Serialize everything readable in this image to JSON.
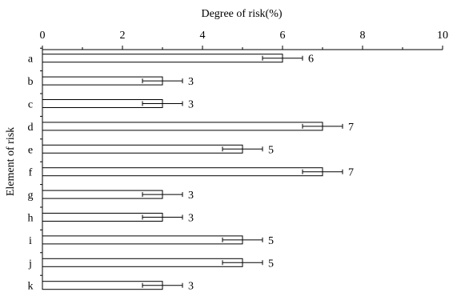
{
  "chart_data": {
    "type": "bar",
    "orientation": "horizontal",
    "xlabel": "Degree of risk(%)",
    "ylabel": "Element of risk",
    "xlim": [
      0,
      10
    ],
    "x_ticks": [
      0,
      2,
      4,
      6,
      8,
      10
    ],
    "x_axis_position": "top",
    "grid": false,
    "categories": [
      "a",
      "b",
      "c",
      "d",
      "e",
      "f",
      "g",
      "h",
      "i",
      "j",
      "k"
    ],
    "values": [
      6,
      3,
      3,
      7,
      5,
      7,
      3,
      3,
      5,
      5,
      3
    ],
    "error": [
      0.5,
      0.5,
      0.5,
      0.5,
      0.5,
      0.5,
      0.5,
      0.5,
      0.5,
      0.5,
      0.5
    ],
    "data_labels": [
      "6",
      "3",
      "3",
      "7",
      "5",
      "7",
      "3",
      "3",
      "5",
      "5",
      "3"
    ]
  }
}
